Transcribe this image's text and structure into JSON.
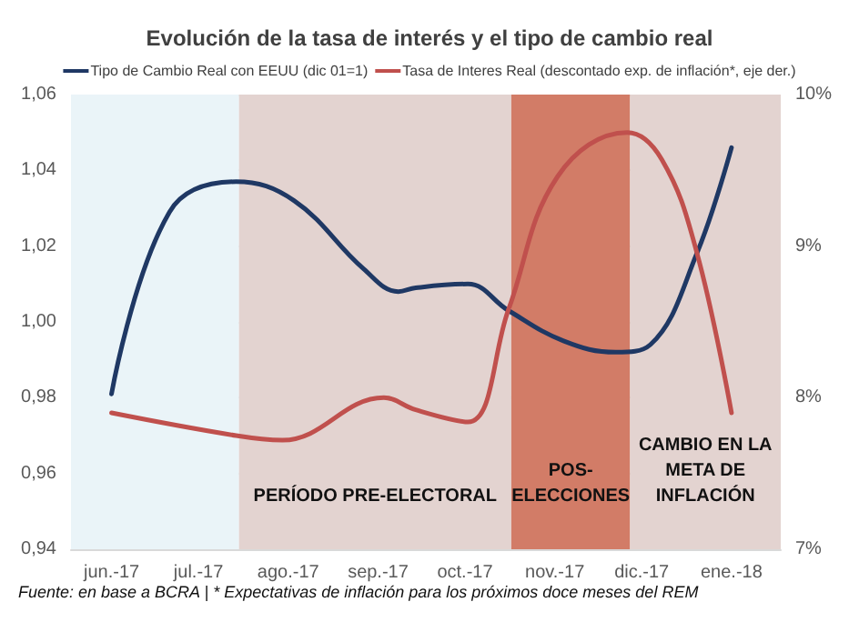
{
  "chart_data": {
    "type": "line",
    "title": "Evolución de la tasa de interés y el tipo de cambio real",
    "xlim": [
      "2017-06-01",
      "2018-02-01"
    ],
    "xticks": [
      {
        "value": "2017-06-15",
        "label": "jun.-17"
      },
      {
        "value": "2017-07-15",
        "label": "jul.-17"
      },
      {
        "value": "2017-08-15",
        "label": "ago.-17"
      },
      {
        "value": "2017-09-15",
        "label": "sep.-17"
      },
      {
        "value": "2017-10-15",
        "label": "oct.-17"
      },
      {
        "value": "2017-11-15",
        "label": "nov.-17"
      },
      {
        "value": "2017-12-15",
        "label": "dic.-17"
      },
      {
        "value": "2018-01-15",
        "label": "ene.-18"
      }
    ],
    "ylim": [
      0.94,
      1.06
    ],
    "yticks": [
      {
        "value": 0.94,
        "label": "0,94"
      },
      {
        "value": 0.96,
        "label": "0,96"
      },
      {
        "value": 0.98,
        "label": "0,98"
      },
      {
        "value": 1.0,
        "label": "1,00"
      },
      {
        "value": 1.02,
        "label": "1,02"
      },
      {
        "value": 1.04,
        "label": "1,04"
      },
      {
        "value": 1.06,
        "label": "1,06"
      }
    ],
    "y2lim": [
      7,
      10
    ],
    "y2ticks": [
      {
        "value": 7,
        "label": "7%"
      },
      {
        "value": 8,
        "label": "8%"
      },
      {
        "value": 9,
        "label": "9%"
      },
      {
        "value": 10,
        "label": "10%"
      }
    ],
    "series": [
      {
        "name": "Tipo de Cambio Real con EEUU (dic 01=1)",
        "color": "#1f3864",
        "x": [
          "2017-06-15",
          "2017-07-05",
          "2017-07-28",
          "2017-08-17",
          "2017-09-10",
          "2017-09-22",
          "2017-09-28",
          "2017-10-16",
          "2017-10-30",
          "2017-11-18",
          "2017-12-06",
          "2017-12-18",
          "2018-01-03",
          "2018-01-15"
        ],
        "values": [
          0.981,
          1.029,
          1.037,
          1.032,
          1.014,
          1.008,
          1.009,
          1.01,
          1.003,
          0.995,
          0.992,
          0.994,
          1.018,
          1.046
        ]
      },
      {
        "name": "Tasa de Interes Real (descontado exp. de inflación*, eje der.)",
        "color": "#c0504d",
        "axis": "y2",
        "x": [
          "2017-06-15",
          "2017-07-28",
          "2017-08-13",
          "2017-09-17",
          "2017-09-28",
          "2017-10-16",
          "2017-10-30",
          "2017-11-16",
          "2017-12-10",
          "2017-12-22",
          "2018-01-03",
          "2018-01-15"
        ],
        "values": [
          7.9,
          7.75,
          7.72,
          8.0,
          7.92,
          7.84,
          8.58,
          9.46,
          9.75,
          9.57,
          8.96,
          7.9
        ]
      }
    ],
    "bands": [
      {
        "axis": "x",
        "from": "2017-06-01",
        "to": "2017-07-29",
        "label": null,
        "color": "#eaf4f8"
      },
      {
        "axis": "x",
        "from": "2017-07-29",
        "to": "2017-10-31",
        "label": "PERÍODO PRE-ELECTORAL",
        "color": "#e3d3d0"
      },
      {
        "axis": "x",
        "from": "2017-10-31",
        "to": "2017-12-11",
        "label": "POS-\nELECCIONES",
        "color": "#d27c67"
      },
      {
        "axis": "x",
        "from": "2017-12-11",
        "to": "2018-02-01",
        "label": "CAMBIO EN LA\nMETA DE\nINFLACIÓN",
        "color": "#e3d3d0"
      }
    ],
    "annotations": [
      "Fuente: en base a BCRA | * Expectativas de inflación para los próximos doce meses del REM"
    ],
    "grid": "y",
    "legend": "top",
    "marker": "none",
    "line_style": "solid"
  }
}
